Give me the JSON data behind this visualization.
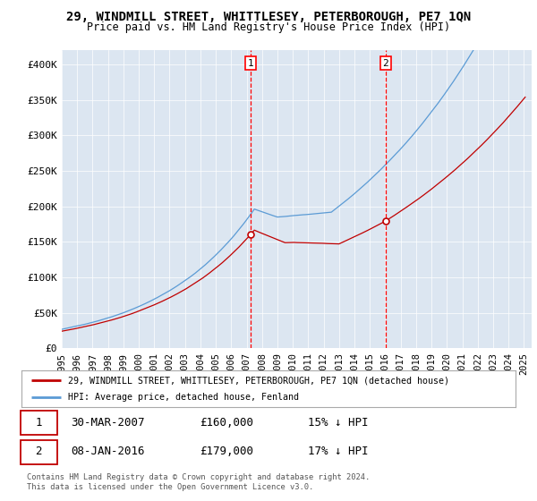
{
  "title": "29, WINDMILL STREET, WHITTLESEY, PETERBOROUGH, PE7 1QN",
  "subtitle": "Price paid vs. HM Land Registry's House Price Index (HPI)",
  "ylabel_ticks": [
    "£0",
    "£50K",
    "£100K",
    "£150K",
    "£200K",
    "£250K",
    "£300K",
    "£350K",
    "£400K"
  ],
  "ytick_vals": [
    0,
    50000,
    100000,
    150000,
    200000,
    250000,
    300000,
    350000,
    400000
  ],
  "ylim": [
    0,
    420000
  ],
  "xlim_start": 1995.0,
  "xlim_end": 2025.5,
  "x_years": [
    1995,
    1996,
    1997,
    1998,
    1999,
    2000,
    2001,
    2002,
    2003,
    2004,
    2005,
    2006,
    2007,
    2008,
    2009,
    2010,
    2011,
    2012,
    2013,
    2014,
    2015,
    2016,
    2017,
    2018,
    2019,
    2020,
    2021,
    2022,
    2023,
    2024,
    2025
  ],
  "hpi_color": "#5b9bd5",
  "price_color": "#c00000",
  "dashed_color": "#ff0000",
  "background_color": "#dce6f1",
  "legend_label_red": "29, WINDMILL STREET, WHITTLESEY, PETERBOROUGH, PE7 1QN (detached house)",
  "legend_label_blue": "HPI: Average price, detached house, Fenland",
  "marker1_year": 2007.25,
  "marker1_price": 160000,
  "marker2_year": 2016.03,
  "marker2_price": 179000,
  "footnote": "Contains HM Land Registry data © Crown copyright and database right 2024.\nThis data is licensed under the Open Government Licence v3.0.",
  "table_rows": [
    {
      "num": "1",
      "date": "30-MAR-2007",
      "price": "£160,000",
      "hpi": "15% ↓ HPI"
    },
    {
      "num": "2",
      "date": "08-JAN-2016",
      "price": "£179,000",
      "hpi": "17% ↓ HPI"
    }
  ]
}
